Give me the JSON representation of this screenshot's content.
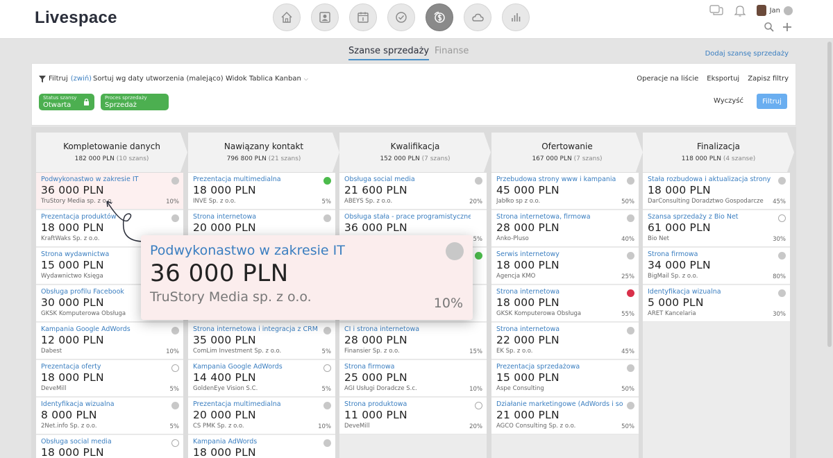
{
  "app": {
    "logo": "Livespace"
  },
  "nav": [
    {
      "name": "home-icon"
    },
    {
      "name": "contacts-icon"
    },
    {
      "name": "calendar-icon"
    },
    {
      "name": "tasks-icon"
    },
    {
      "name": "sales-icon",
      "active": true
    },
    {
      "name": "cloud-icon"
    },
    {
      "name": "reports-icon"
    }
  ],
  "user": {
    "name": "Jan"
  },
  "tabs": {
    "active": "Szanse sprzedaży",
    "secondary": "Finanse",
    "add_link": "Dodaj szansę sprzedaży"
  },
  "filters": {
    "filter_label": "Filtruj",
    "collapse_label": "(zwiń)",
    "sort_label": "Sortuj wg daty utworzenia (malejąco)",
    "view_label": "Widok Tablica Kanban",
    "ops": [
      "Operacje na liście",
      "Eksportuj",
      "Zapisz filtry"
    ],
    "chips": [
      {
        "label": "Status szansy",
        "value": "Otwarta"
      },
      {
        "label": "Proces sprzedaży",
        "value": "Sprzedaż"
      }
    ],
    "clear_label": "Wyczyść",
    "apply_label": "Filtruj"
  },
  "columns": [
    {
      "title": "Kompletowanie danych",
      "sum": "182 000 PLN",
      "count": "(10 szans)",
      "cards": [
        {
          "name": "Podwykonastwo w zakresie IT",
          "value": "36 000 PLN",
          "company": "TruStory Media sp. z o.o.",
          "pct": "10%",
          "dot": "grey",
          "highlight": true
        },
        {
          "name": "Prezentacja produktów",
          "value": "18 000 PLN",
          "company": "KraftWaks Sp. z o.o.",
          "pct": "",
          "dot": "grey"
        },
        {
          "name": "Strona wydawnictwa",
          "value": "15 000 PLN",
          "company": "Wydawnictwo Księga",
          "pct": "",
          "dot": "grey"
        },
        {
          "name": "Obsługa profilu Facebook",
          "value": "30 000 PLN",
          "company": "GKSK Komputerowa Obsługa",
          "pct": "",
          "dot": "grey"
        },
        {
          "name": "Kampania Google AdWords",
          "value": "12 000 PLN",
          "company": "Dabest",
          "pct": "10%",
          "dot": "grey"
        },
        {
          "name": "Prezentacja oferty",
          "value": "18 000 PLN",
          "company": "DeveMill",
          "pct": "5%",
          "dot": "empty"
        },
        {
          "name": "Identyfikacja wizualna",
          "value": "8 000 PLN",
          "company": "2Net.info Sp. z o.o.",
          "pct": "5%",
          "dot": "grey"
        },
        {
          "name": "Obsługa social media",
          "value": "18 000 PLN",
          "company": "",
          "pct": "",
          "dot": "empty"
        }
      ]
    },
    {
      "title": "Nawiązany kontakt",
      "sum": "796 800 PLN",
      "count": "(21 szans)",
      "cards": [
        {
          "name": "Prezentacja multimedialna",
          "value": "18 000 PLN",
          "company": "INVE Sp. z o.o.",
          "pct": "5%",
          "dot": "green"
        },
        {
          "name": "Strona internetowa",
          "value": "20 000 PLN",
          "company": "",
          "pct": "",
          "dot": "grey"
        },
        {
          "name": "",
          "value": "",
          "company": "",
          "pct": "",
          "dot": ""
        },
        {
          "name": "",
          "value": "",
          "company": "",
          "pct": "",
          "dot": ""
        },
        {
          "name": "Strona internetowa i integracja z CRM",
          "value": "35 000 PLN",
          "company": "ComLim Investment Sp. z o.o.",
          "pct": "5%",
          "dot": "grey"
        },
        {
          "name": "Kampania Google AdWords",
          "value": "14 400 PLN",
          "company": "GoldenEye Vision S.C.",
          "pct": "5%",
          "dot": "empty"
        },
        {
          "name": "Prezentacja multimedialna",
          "value": "20 000 PLN",
          "company": "CS PMK Sp. z o.o.",
          "pct": "10%",
          "dot": "grey"
        },
        {
          "name": "Kampania AdWords",
          "value": "18 000 PLN",
          "company": "",
          "pct": "",
          "dot": "grey"
        }
      ]
    },
    {
      "title": "Kwalifikacja",
      "sum": "152 000 PLN",
      "count": "(7 szans)",
      "cards": [
        {
          "name": "Obsługa social media",
          "value": "21 600 PLN",
          "company": "ABEYS Sp. z o.o.",
          "pct": "20%",
          "dot": "grey"
        },
        {
          "name": "Obsługa stała - prace programistyczne",
          "value": "36 000 PLN",
          "company": "",
          "pct": "5%",
          "dot": ""
        },
        {
          "name": "",
          "value": "",
          "company": "",
          "pct": "",
          "dot": "green"
        },
        {
          "name": "",
          "value": "",
          "company": "",
          "pct": "",
          "dot": ""
        },
        {
          "name": "CI i strona internetowa",
          "value": "28 000 PLN",
          "company": "Finansier Sp. z o.o.",
          "pct": "15%",
          "dot": ""
        },
        {
          "name": "Strona firmowa",
          "value": "25 000 PLN",
          "company": "AGI Usługi Doradcze S.c.",
          "pct": "10%",
          "dot": ""
        },
        {
          "name": "Strona produktowa",
          "value": "11 000 PLN",
          "company": "DeveMill",
          "pct": "20%",
          "dot": "empty"
        }
      ]
    },
    {
      "title": "Ofertowanie",
      "sum": "167 000 PLN",
      "count": "(7 szans)",
      "cards": [
        {
          "name": "Przebudowa strony www i kampania",
          "value": "45 000 PLN",
          "company": "Jabłko sp z o.o.",
          "pct": "50%",
          "dot": "grey"
        },
        {
          "name": "Strona internetowa, firmowa",
          "value": "28 000 PLN",
          "company": "Anko-Pluso",
          "pct": "40%",
          "dot": "grey"
        },
        {
          "name": "Serwis internetowy",
          "value": "18 000 PLN",
          "company": "Agencja KMO",
          "pct": "25%",
          "dot": "grey"
        },
        {
          "name": "Strona internetowa",
          "value": "18 000 PLN",
          "company": "GKSK Komputerowa Obsługa",
          "pct": "55%",
          "dot": "red"
        },
        {
          "name": "Strona internetowa",
          "value": "22 000 PLN",
          "company": "EK Sp. z o.o.",
          "pct": "45%",
          "dot": "grey"
        },
        {
          "name": "Prezentacja sprzedażowa",
          "value": "15 000 PLN",
          "company": "Aspe Consulting",
          "pct": "50%",
          "dot": "grey"
        },
        {
          "name": "Działanie marketingowe (AdWords i soc...",
          "value": "21 000 PLN",
          "company": "AGCO Consulting Sp. z o.o.",
          "pct": "50%",
          "dot": "grey"
        }
      ]
    },
    {
      "title": "Finalizacja",
      "sum": "118 000 PLN",
      "count": "(4 szanse)",
      "cards": [
        {
          "name": "Stała rozbudowa i aktualizacja strony",
          "value": "18 000 PLN",
          "company": "DarConsulting Doradztwo Gospodarcze",
          "pct": "45%",
          "dot": "grey"
        },
        {
          "name": "Szansa sprzedaży z Bio Net",
          "value": "61 000 PLN",
          "company": "Bio Net",
          "pct": "30%",
          "dot": "empty"
        },
        {
          "name": "Strona firmowa",
          "value": "34 000 PLN",
          "company": "BigMail Sp. z o.o.",
          "pct": "80%",
          "dot": "grey"
        },
        {
          "name": "Identyfikacja wizualna",
          "value": "5 000 PLN",
          "company": "ARET Kancelaria",
          "pct": "30%",
          "dot": "grey"
        }
      ]
    }
  ],
  "popup": {
    "name": "Podwykonastwo w zakresie IT",
    "value": "36 000 PLN",
    "company": "TruStory Media sp. z o.o.",
    "pct": "10%"
  }
}
